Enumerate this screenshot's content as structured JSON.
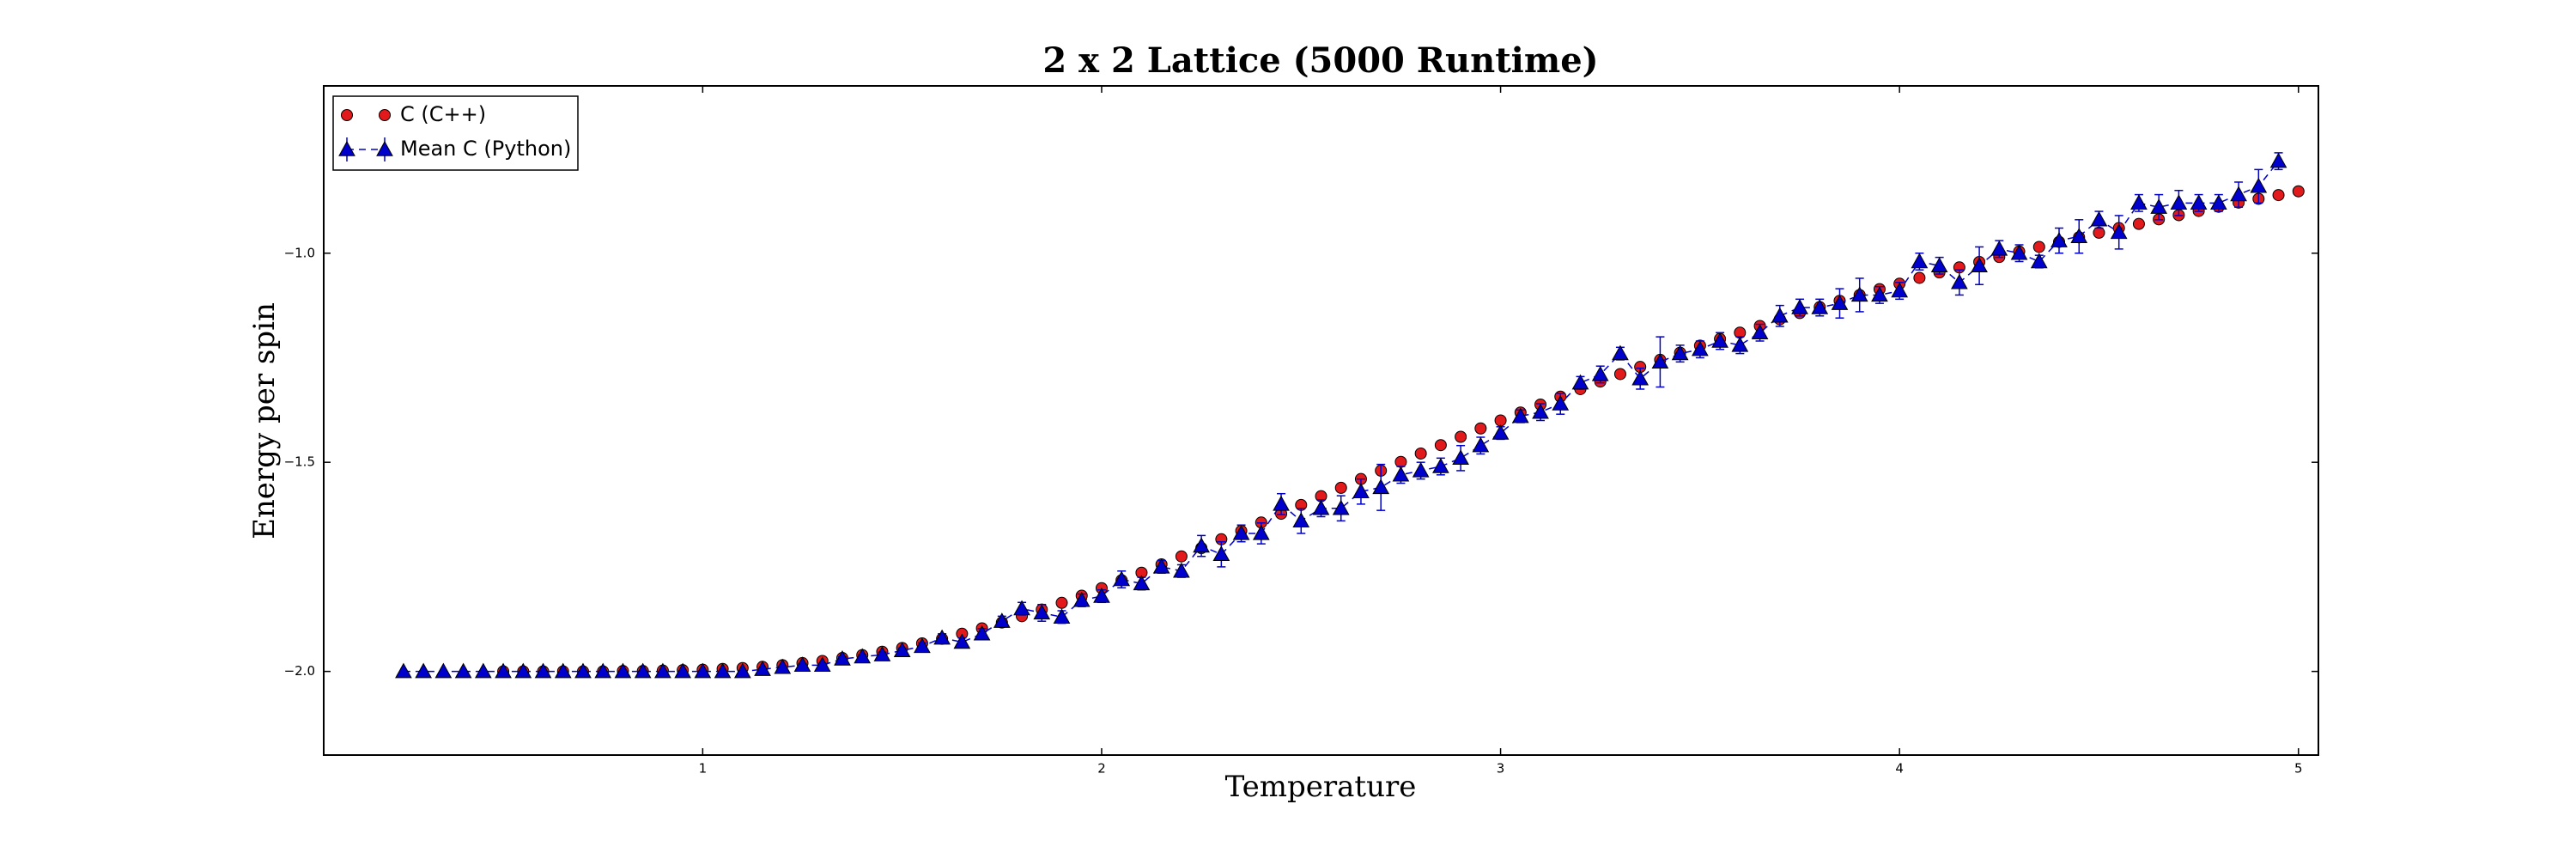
{
  "chart_data": {
    "type": "scatter",
    "title": "2 x 2 Lattice (5000 Runtime)",
    "x_label": "Temperature",
    "y_label": "Energy per spin",
    "xlim": [
      0.05,
      5.05
    ],
    "ylim": [
      -2.2,
      -0.6
    ],
    "xticks": [
      1,
      2,
      3,
      4,
      5
    ],
    "yticks": [
      {
        "value": -2,
        "label": "−2.0"
      },
      {
        "value": -1.5,
        "label": "−1.5"
      },
      {
        "value": -1,
        "label": "−1.0"
      }
    ],
    "legend": "upper left",
    "series": [
      {
        "name": "C (C++)",
        "color": "#e31a1c",
        "marker": "circle",
        "x": [
          0.5,
          0.55,
          0.6,
          0.65,
          0.7,
          0.75,
          0.8,
          0.85,
          0.9,
          0.95,
          1.0,
          1.05,
          1.1,
          1.15,
          1.2,
          1.25,
          1.3,
          1.35,
          1.4,
          1.45,
          1.5,
          1.55,
          1.6,
          1.65,
          1.7,
          1.75,
          1.8,
          1.85,
          1.9,
          1.95,
          2.0,
          2.05,
          2.1,
          2.15,
          2.2,
          2.25,
          2.3,
          2.35,
          2.4,
          2.45,
          2.5,
          2.55,
          2.6,
          2.65,
          2.7,
          2.75,
          2.8,
          2.85,
          2.9,
          2.95,
          3.0,
          3.05,
          3.1,
          3.15,
          3.2,
          3.25,
          3.3,
          3.35,
          3.4,
          3.45,
          3.5,
          3.55,
          3.6,
          3.65,
          3.7,
          3.75,
          3.8,
          3.85,
          3.9,
          3.95,
          4.0,
          4.05,
          4.1,
          4.15,
          4.2,
          4.25,
          4.3,
          4.35,
          4.4,
          4.45,
          4.5,
          4.55,
          4.6,
          4.65,
          4.7,
          4.75,
          4.8,
          4.85,
          4.9,
          4.95,
          5.0
        ],
        "values": [
          -2.0,
          -2.0,
          -2.0,
          -2.0,
          -2.0,
          -2.0,
          -1.999,
          -1.999,
          -1.998,
          -1.997,
          -1.996,
          -1.994,
          -1.992,
          -1.989,
          -1.985,
          -1.98,
          -1.975,
          -1.968,
          -1.961,
          -1.953,
          -1.944,
          -1.933,
          -1.922,
          -1.91,
          -1.897,
          -1.883,
          -1.868,
          -1.852,
          -1.836,
          -1.819,
          -1.801,
          -1.782,
          -1.764,
          -1.744,
          -1.725,
          -1.705,
          -1.684,
          -1.664,
          -1.644,
          -1.623,
          -1.602,
          -1.581,
          -1.561,
          -1.54,
          -1.52,
          -1.499,
          -1.479,
          -1.459,
          -1.439,
          -1.419,
          -1.4,
          -1.381,
          -1.362,
          -1.343,
          -1.325,
          -1.307,
          -1.289,
          -1.272,
          -1.255,
          -1.238,
          -1.221,
          -1.205,
          -1.19,
          -1.174,
          -1.158,
          -1.143,
          -1.129,
          -1.114,
          -1.1,
          -1.086,
          -1.073,
          -1.059,
          -1.046,
          -1.034,
          -1.021,
          -1.009,
          -0.996,
          -0.985,
          -0.973,
          -0.962,
          -0.951,
          -0.94,
          -0.93,
          -0.919,
          -0.909,
          -0.899,
          -0.889,
          -0.879,
          -0.87,
          -0.861,
          -0.852
        ]
      },
      {
        "name": "Mean C (Python)",
        "color": "#0000cc",
        "marker": "triangle",
        "x": [
          0.25,
          0.3,
          0.35,
          0.4,
          0.45,
          0.5,
          0.55,
          0.6,
          0.65,
          0.7,
          0.75,
          0.8,
          0.85,
          0.9,
          0.95,
          1.0,
          1.05,
          1.1,
          1.15,
          1.2,
          1.25,
          1.3,
          1.35,
          1.4,
          1.45,
          1.5,
          1.55,
          1.6,
          1.65,
          1.7,
          1.75,
          1.8,
          1.85,
          1.9,
          1.95,
          2.0,
          2.05,
          2.1,
          2.15,
          2.2,
          2.25,
          2.3,
          2.35,
          2.4,
          2.45,
          2.5,
          2.55,
          2.6,
          2.65,
          2.7,
          2.75,
          2.8,
          2.85,
          2.9,
          2.95,
          3.0,
          3.05,
          3.1,
          3.15,
          3.2,
          3.25,
          3.3,
          3.35,
          3.4,
          3.45,
          3.5,
          3.55,
          3.6,
          3.65,
          3.7,
          3.75,
          3.8,
          3.85,
          3.9,
          3.95,
          4.0,
          4.05,
          4.1,
          4.15,
          4.2,
          4.25,
          4.3,
          4.35,
          4.4,
          4.45,
          4.5,
          4.55,
          4.6,
          4.65,
          4.7,
          4.75,
          4.8,
          4.85,
          4.9,
          4.95
        ],
        "values": [
          -2.0,
          -2.0,
          -2.0,
          -2.0,
          -2.0,
          -2.0,
          -2.0,
          -2.0,
          -2.0,
          -2.0,
          -2.0,
          -2.0,
          -2.0,
          -2.0,
          -2.0,
          -2.0,
          -2.0,
          -2.0,
          -1.995,
          -1.99,
          -1.985,
          -1.985,
          -1.97,
          -1.965,
          -1.96,
          -1.95,
          -1.94,
          -1.92,
          -1.93,
          -1.91,
          -1.88,
          -1.85,
          -1.86,
          -1.87,
          -1.83,
          -1.82,
          -1.78,
          -1.79,
          -1.75,
          -1.76,
          -1.7,
          -1.72,
          -1.67,
          -1.67,
          -1.6,
          -1.64,
          -1.61,
          -1.61,
          -1.57,
          -1.56,
          -1.53,
          -1.52,
          -1.51,
          -1.49,
          -1.46,
          -1.43,
          -1.39,
          -1.38,
          -1.36,
          -1.31,
          -1.29,
          -1.24,
          -1.3,
          -1.26,
          -1.24,
          -1.23,
          -1.21,
          -1.22,
          -1.19,
          -1.15,
          -1.13,
          -1.13,
          -1.12,
          -1.1,
          -1.1,
          -1.09,
          -1.02,
          -1.03,
          -1.07,
          -1.03,
          -0.99,
          -1.0,
          -1.02,
          -0.97,
          -0.96,
          -0.92,
          -0.95,
          -0.88,
          -0.89,
          -0.88,
          -0.88,
          -0.88,
          -0.86,
          -0.84,
          -0.78
        ],
        "errors": [
          0,
          0,
          0,
          0,
          0,
          0,
          0,
          0,
          0,
          0,
          0,
          0,
          0,
          0,
          0,
          0,
          0,
          0,
          0.003,
          0.003,
          0.004,
          0.004,
          0.005,
          0.005,
          0.006,
          0.006,
          0.008,
          0.01,
          0.01,
          0.012,
          0.012,
          0.015,
          0.02,
          0.015,
          0.015,
          0.015,
          0.02,
          0.015,
          0.015,
          0.015,
          0.025,
          0.03,
          0.02,
          0.025,
          0.025,
          0.03,
          0.02,
          0.03,
          0.03,
          0.055,
          0.02,
          0.02,
          0.02,
          0.03,
          0.02,
          0.015,
          0.015,
          0.02,
          0.025,
          0.015,
          0.02,
          0.015,
          0.025,
          0.06,
          0.02,
          0.02,
          0.02,
          0.02,
          0.02,
          0.025,
          0.02,
          0.02,
          0.035,
          0.04,
          0.02,
          0.02,
          0.02,
          0.02,
          0.03,
          0.045,
          0.02,
          0.02,
          0.015,
          0.03,
          0.04,
          0.02,
          0.04,
          0.02,
          0.03,
          0.03,
          0.02,
          0.02,
          0.03,
          0.04,
          0.02
        ]
      }
    ]
  }
}
